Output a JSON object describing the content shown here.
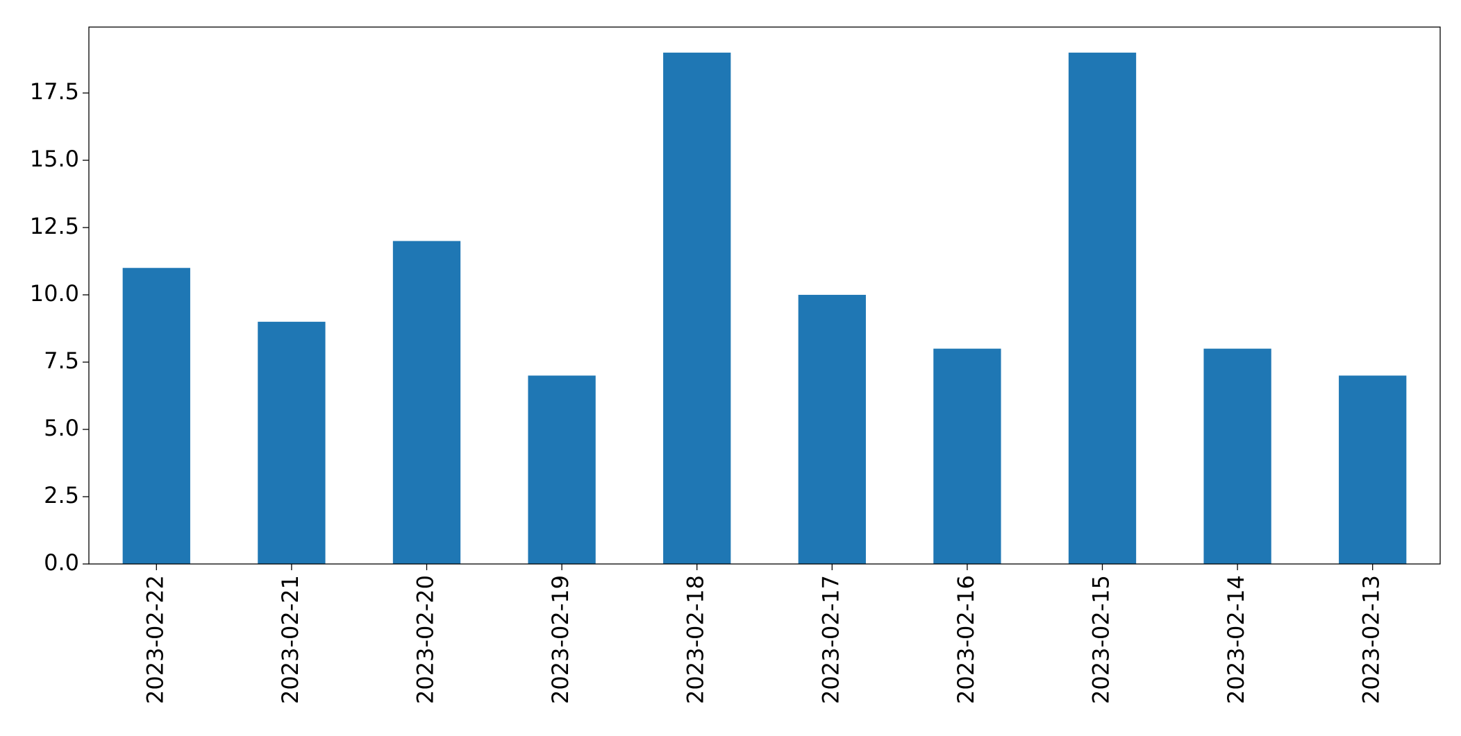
{
  "chart_data": {
    "type": "bar",
    "categories": [
      "2023-02-22",
      "2023-02-21",
      "2023-02-20",
      "2023-02-19",
      "2023-02-18",
      "2023-02-17",
      "2023-02-16",
      "2023-02-15",
      "2023-02-14",
      "2023-02-13"
    ],
    "values": [
      11,
      9,
      12,
      7,
      19,
      10,
      8,
      19,
      8,
      7
    ],
    "color": "#1f77b4",
    "ylim": [
      0,
      19.95
    ],
    "yticks": [
      {
        "value": 0,
        "label": "0.0"
      },
      2.5,
      {
        "value": 5,
        "label": "5.0"
      },
      7.5,
      {
        "value": 10,
        "label": "10.0"
      },
      12.5,
      {
        "value": 15,
        "label": "15.0"
      },
      17.5
    ],
    "grid": false
  }
}
